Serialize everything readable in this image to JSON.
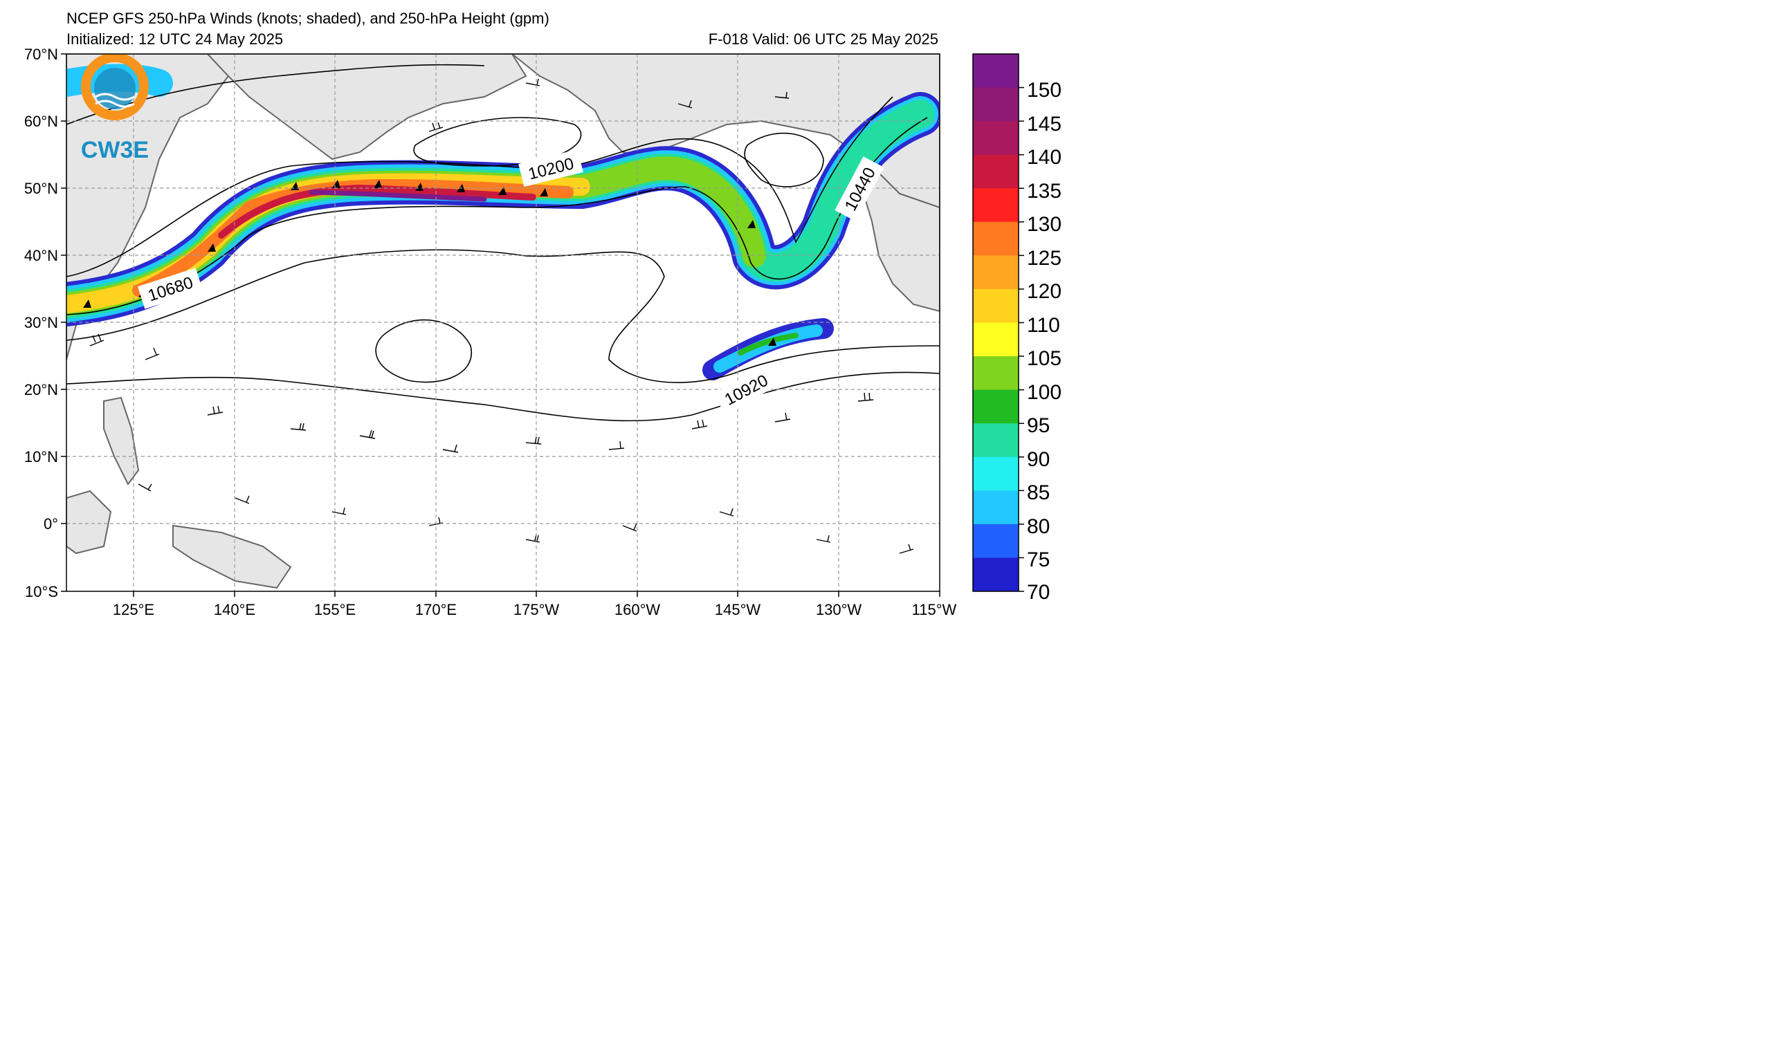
{
  "header": {
    "title": "NCEP GFS 250-hPa Winds (knots; shaded), and 250-hPa Height (gpm)",
    "initialized": "Initialized: 12 UTC 24 May 2025",
    "valid": "F-018  Valid: 06 UTC 25 May 2025"
  },
  "logo": {
    "text": "CW3E",
    "ring_color": "#f7941d",
    "text_color": "#1b8fc4"
  },
  "map": {
    "lat_labels": [
      "70°N",
      "60°N",
      "50°N",
      "40°N",
      "30°N",
      "20°N",
      "10°N",
      "0°",
      "10°S"
    ],
    "lon_labels": [
      "125°E",
      "140°E",
      "155°E",
      "170°E",
      "175°W",
      "160°W",
      "145°W",
      "130°W",
      "115°W"
    ],
    "land_color": "#e6e6e6",
    "ocean_color": "#ffffff",
    "grid_color": "#999999"
  },
  "contours": {
    "labels": [
      "10200",
      "10440",
      "10680",
      "10920"
    ]
  },
  "colorbar": {
    "ticks": [
      "150",
      "145",
      "140",
      "135",
      "130",
      "125",
      "120",
      "110",
      "105",
      "100",
      "95",
      "90",
      "85",
      "80",
      "75",
      "70"
    ],
    "colors": [
      "#7a1a8c",
      "#8e1a75",
      "#a8195f",
      "#c9193f",
      "#ff2020",
      "#ff7a20",
      "#ffa620",
      "#ffd21e",
      "#ffff20",
      "#7fd41f",
      "#22bb22",
      "#22dda0",
      "#22f0f0",
      "#22c8ff",
      "#2060ff",
      "#2020cc"
    ]
  }
}
